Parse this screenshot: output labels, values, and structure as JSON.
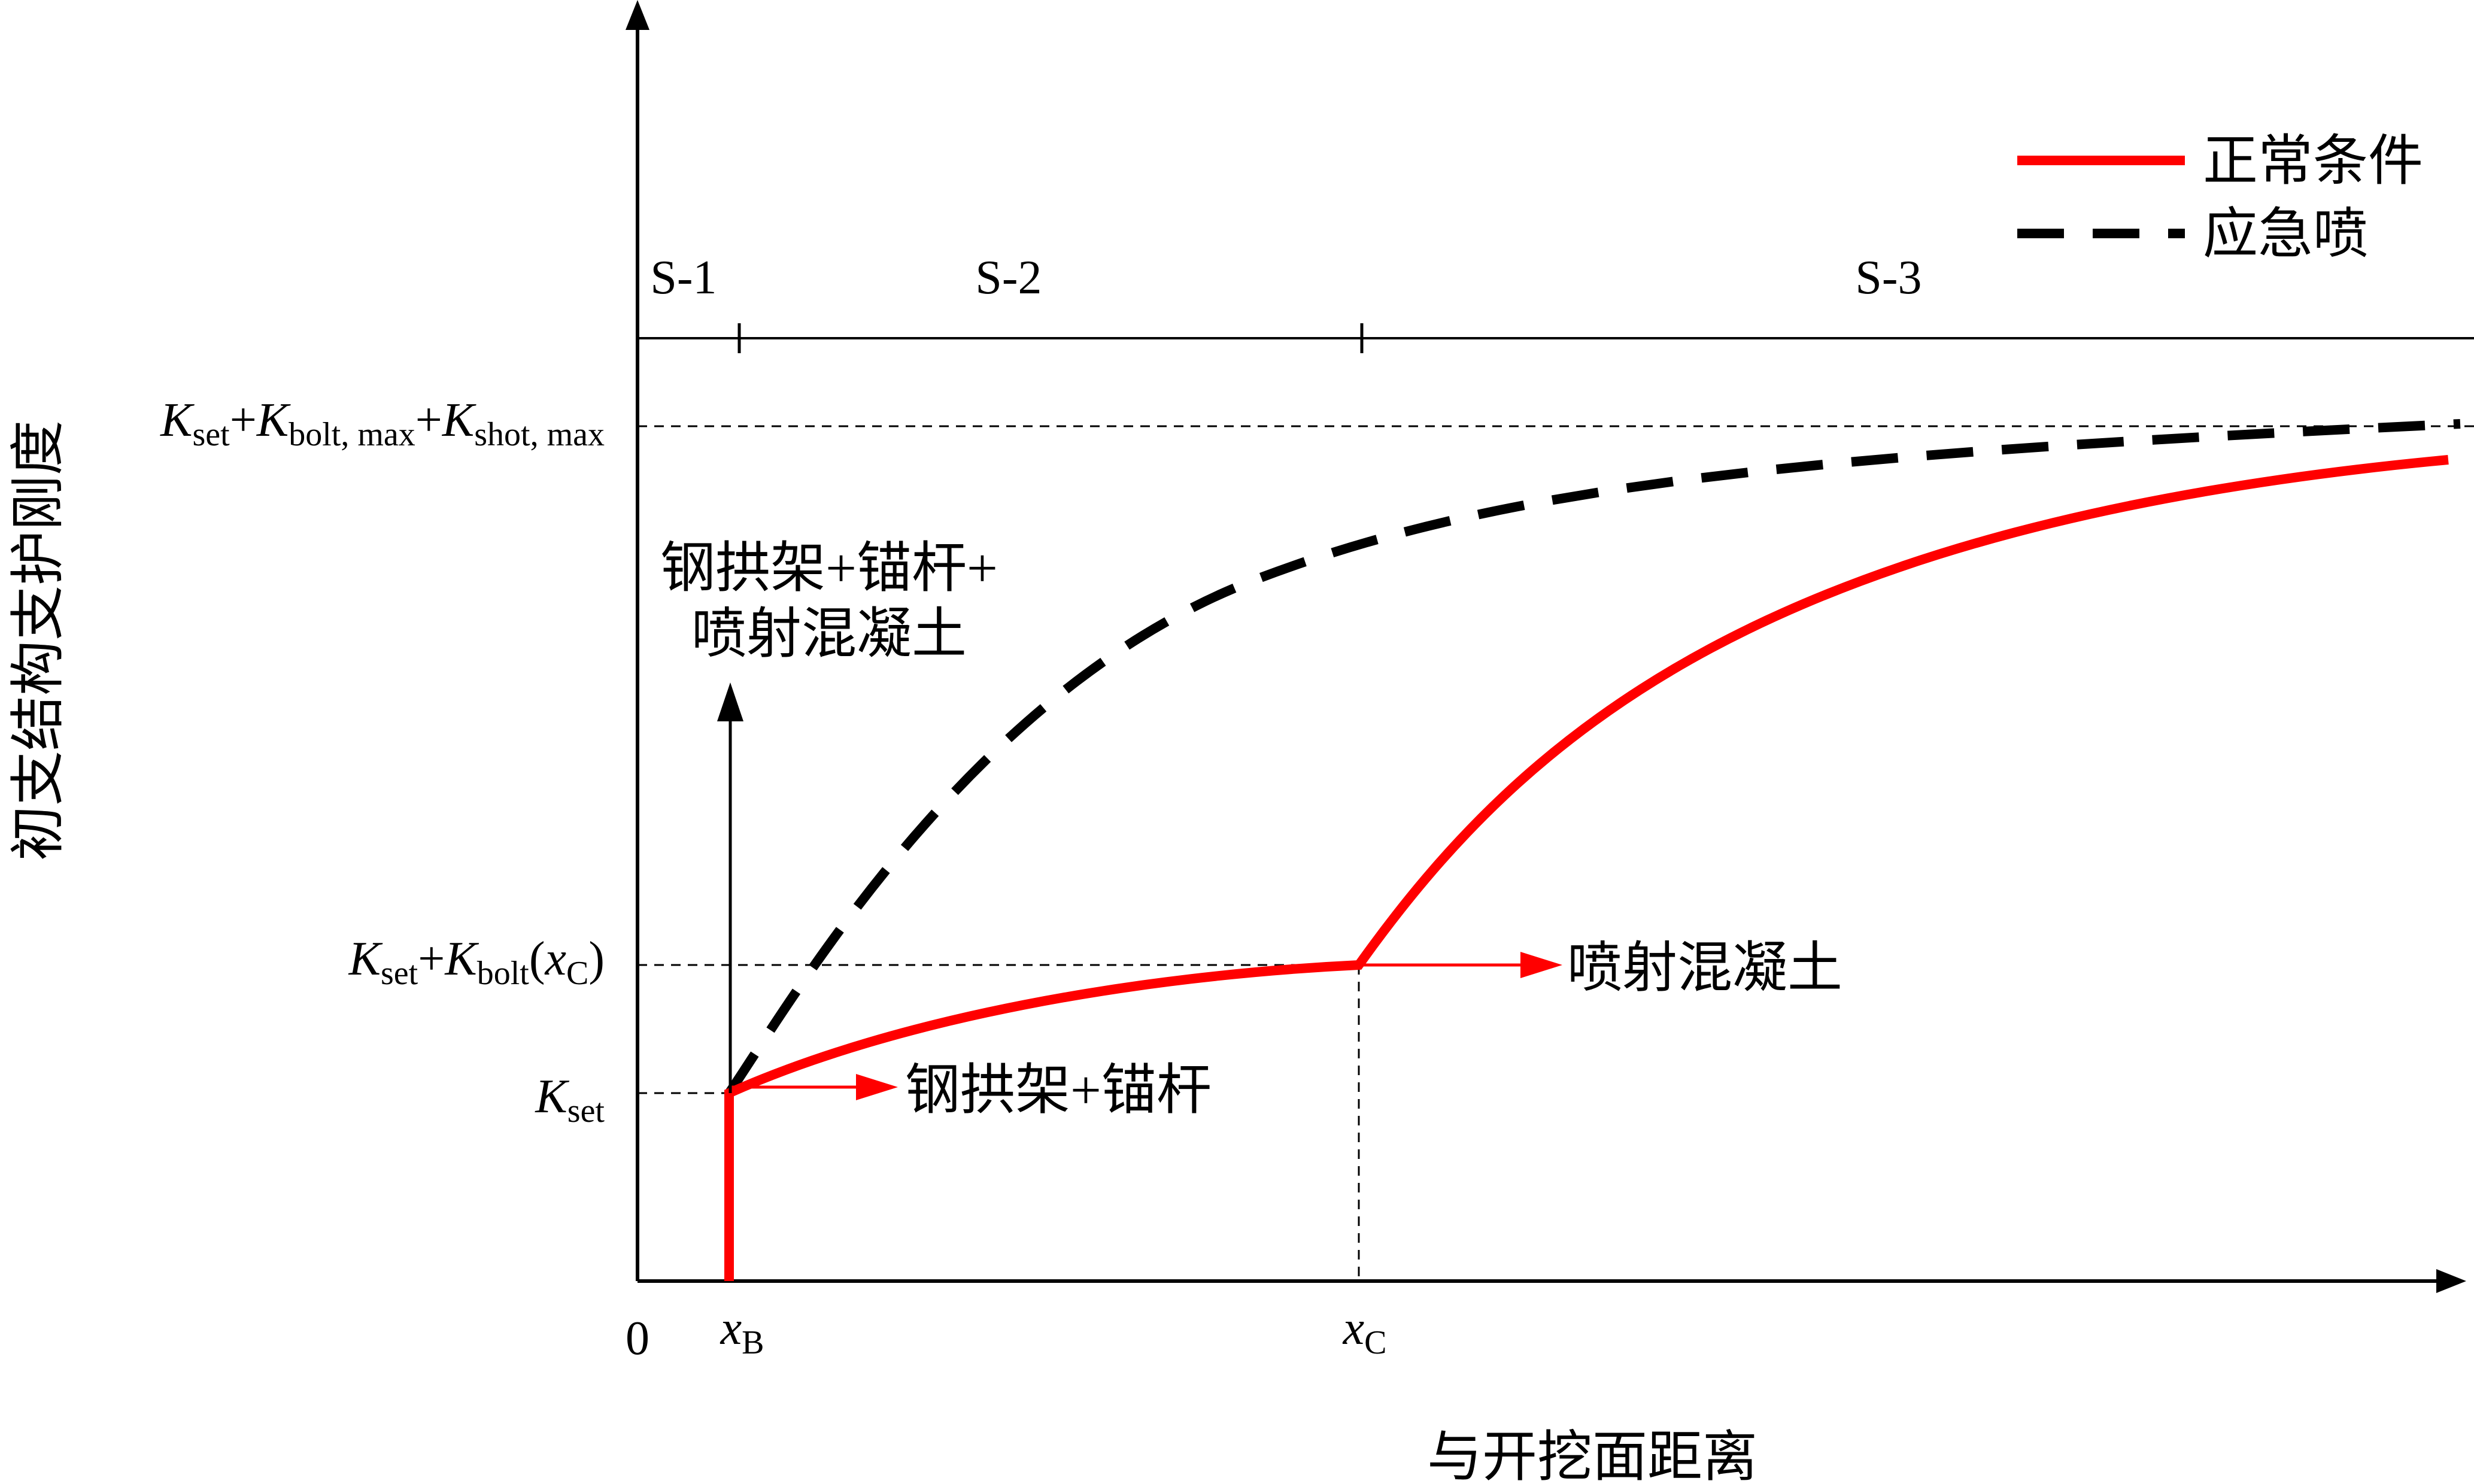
{
  "chart_data": {
    "type": "line",
    "title": "",
    "xlabel": "与开挖面距离",
    "ylabel": "初支结构支护刚度",
    "x_ticks": [
      {
        "label": "0",
        "sub": ""
      },
      {
        "label": "x",
        "sub": "B"
      },
      {
        "label": "x",
        "sub": "C"
      }
    ],
    "y_ticks": [
      {
        "parts": [
          [
            "K",
            "main",
            "italic"
          ],
          [
            "set",
            "sub",
            "normal"
          ]
        ]
      },
      {
        "parts": [
          [
            "K",
            "main",
            "italic"
          ],
          [
            "set",
            "sub",
            "normal"
          ],
          [
            "+",
            "main",
            "normal"
          ],
          [
            "K",
            "main",
            "italic"
          ],
          [
            "bolt",
            "sub",
            "normal"
          ],
          [
            "(",
            "main",
            "normal"
          ],
          [
            "x",
            "main",
            "italic"
          ],
          [
            "C",
            "sub",
            "normal"
          ],
          [
            ")",
            "main",
            "normal"
          ]
        ]
      },
      {
        "parts": [
          [
            "K",
            "main",
            "italic"
          ],
          [
            "set",
            "sub",
            "normal"
          ],
          [
            "+",
            "main",
            "normal"
          ],
          [
            "K",
            "main",
            "italic"
          ],
          [
            "bolt, max",
            "sub",
            "normal"
          ],
          [
            "+",
            "main",
            "normal"
          ],
          [
            "K",
            "main",
            "italic"
          ],
          [
            "shot, max",
            "sub",
            "normal"
          ]
        ]
      }
    ],
    "stages": [
      "S-1",
      "S-2",
      "S-3"
    ],
    "series": [
      {
        "name": "正常条件",
        "color": "#ff0000",
        "style": "solid"
      },
      {
        "name": "应急喷",
        "color": "#000000",
        "style": "dashed"
      }
    ],
    "annotations": [
      {
        "text": "钢拱架+锚杆"
      },
      {
        "text": "喷射混凝土"
      },
      {
        "lines": [
          "钢拱架+锚杆+",
          "喷射混凝土"
        ]
      }
    ],
    "legend_position": "top-right",
    "grid": false
  }
}
